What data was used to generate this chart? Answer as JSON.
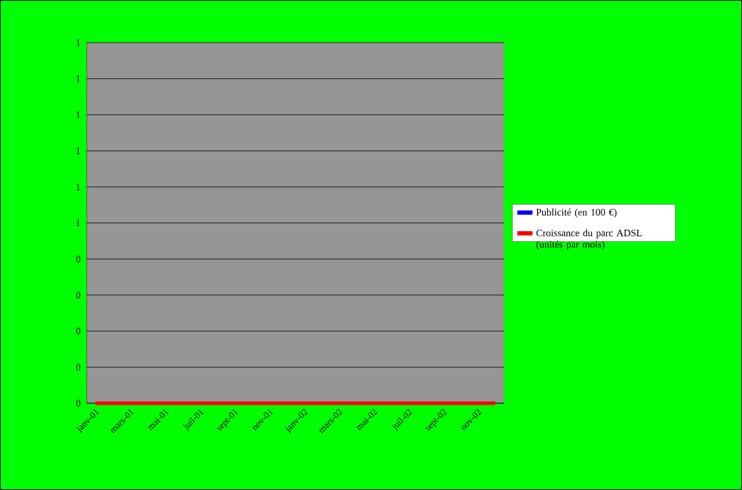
{
  "chart_data": {
    "type": "line",
    "categories": [
      "janv-01",
      null,
      "mars-01",
      null,
      "mai-01",
      null,
      "juil-01",
      null,
      "sept-01",
      null,
      "nov-01",
      null,
      "janv-02",
      null,
      "mars-02",
      null,
      "mai-02",
      null,
      "juil-02",
      null,
      "sept-02",
      null,
      "nov-02",
      null
    ],
    "series": [
      {
        "name": "Publicité      (en 100 €)",
        "color": "#0000ff",
        "values": [
          null,
          null,
          null,
          null,
          null,
          null,
          null,
          null,
          null,
          null,
          null,
          null,
          null,
          null,
          null,
          null,
          null,
          null,
          null,
          null,
          null,
          null,
          null,
          null
        ]
      },
      {
        "name": "Croissance du parc ADSL (unités par mois)",
        "color": "#ff0000",
        "values": [
          0,
          0,
          0,
          0,
          0,
          0,
          0,
          0,
          0,
          0,
          0,
          0,
          0,
          0,
          0,
          0,
          0,
          0,
          0,
          0,
          0,
          0,
          0,
          0
        ]
      }
    ],
    "ylim": [
      0,
      1
    ],
    "yticks": [
      {
        "value": 0,
        "label": "0"
      },
      {
        "value": 0.1,
        "label": "0"
      },
      {
        "value": 0.2,
        "label": "0"
      },
      {
        "value": 0.3,
        "label": "0"
      },
      {
        "value": 0.4,
        "label": "0"
      },
      {
        "value": 0.5,
        "label": "1"
      },
      {
        "value": 0.6,
        "label": "1"
      },
      {
        "value": 0.7,
        "label": "1"
      },
      {
        "value": 0.8,
        "label": "1"
      },
      {
        "value": 0.9,
        "label": "1"
      },
      {
        "value": 1,
        "label": "1"
      }
    ],
    "grid": "y",
    "legend": "right",
    "marker": "none",
    "line_style": "solid"
  }
}
